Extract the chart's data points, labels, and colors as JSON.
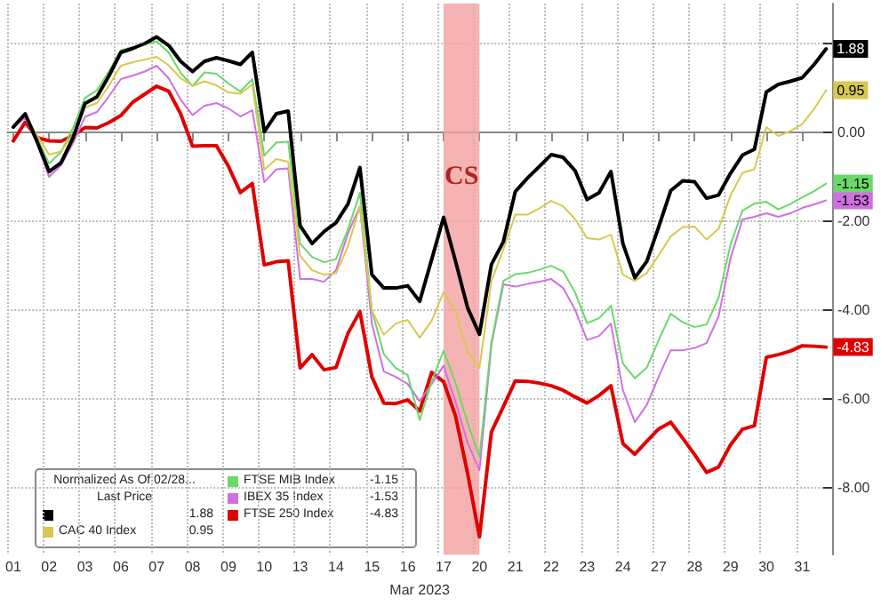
{
  "chart_data": {
    "type": "line",
    "legend_title": "Normalized As Of 02/28...\nLast Price",
    "xlabel": "Mar 2023",
    "categories": [
      "01",
      null,
      null,
      "02",
      null,
      null,
      "03",
      null,
      null,
      "06",
      null,
      null,
      "07",
      null,
      null,
      "08",
      null,
      null,
      "09",
      null,
      null,
      "10",
      null,
      null,
      "13",
      null,
      null,
      "14",
      null,
      null,
      "15",
      null,
      null,
      "16",
      null,
      null,
      "17",
      null,
      null,
      "20",
      null,
      null,
      "21",
      null,
      null,
      "22",
      null,
      null,
      "23",
      null,
      null,
      "24",
      null,
      null,
      "27",
      null,
      null,
      "28",
      null,
      null,
      "29",
      null,
      null,
      "30",
      null,
      null,
      "31",
      null,
      null
    ],
    "series": [
      {
        "color": "#000000",
        "values": [
          0.12,
          0.42,
          -0.21,
          -0.88,
          -0.68,
          -0.12,
          0.65,
          0.8,
          1.27,
          1.8,
          1.89,
          2.0,
          2.15,
          1.96,
          1.6,
          1.37,
          1.6,
          1.68,
          1.61,
          1.53,
          1.8,
          0.02,
          0.42,
          0.48,
          -2.1,
          -2.5,
          -2.23,
          -2.03,
          -1.61,
          -0.79,
          -3.2,
          -3.5,
          -3.5,
          -3.45,
          -3.8,
          -2.86,
          -1.91,
          -2.9,
          -3.94,
          -4.54,
          -2.97,
          -2.46,
          -1.33,
          -1.03,
          -0.77,
          -0.5,
          -0.56,
          -0.86,
          -1.51,
          -1.36,
          -0.88,
          -2.5,
          -3.27,
          -2.9,
          -2.12,
          -1.31,
          -1.09,
          -1.11,
          -1.48,
          -1.41,
          -0.92,
          -0.51,
          -0.38,
          0.91,
          1.08,
          1.15,
          1.23,
          1.53,
          1.88
        ],
        "value_labels": [
          null,
          null,
          null,
          null,
          null,
          null,
          null,
          null,
          null,
          null,
          null,
          null,
          null,
          null,
          null,
          null,
          null,
          null,
          null,
          null,
          null,
          null,
          null,
          null,
          null,
          null,
          null,
          null,
          null,
          null,
          null,
          null,
          null,
          null,
          null,
          null,
          null,
          null,
          null,
          null,
          null,
          null,
          null,
          null,
          null,
          null,
          null,
          null,
          null,
          null,
          null,
          null,
          null,
          null,
          null,
          null,
          null,
          null,
          null,
          null,
          null,
          null,
          null,
          null,
          null,
          null,
          null,
          null,
          "1.88"
        ]
      },
      {
        "name": "CAC 40 Index",
        "color": "#d8c850",
        "values": [
          0.12,
          0.4,
          -0.07,
          -0.5,
          -0.43,
          -0.04,
          0.56,
          0.66,
          1.05,
          1.5,
          1.58,
          1.64,
          1.7,
          1.51,
          1.22,
          1.05,
          1.15,
          1.06,
          0.9,
          0.87,
          1.08,
          -0.84,
          -0.6,
          -0.66,
          -2.77,
          -3.1,
          -3.2,
          -3.17,
          -2.56,
          -1.66,
          -4.0,
          -4.55,
          -4.3,
          -4.22,
          -4.62,
          -4.24,
          -3.59,
          -4.04,
          -4.92,
          -5.3,
          -3.35,
          -2.63,
          -1.85,
          -1.85,
          -1.71,
          -1.54,
          -1.66,
          -1.95,
          -2.38,
          -2.41,
          -2.3,
          -3.2,
          -3.34,
          -3.16,
          -2.76,
          -2.34,
          -2.13,
          -2.12,
          -2.41,
          -2.17,
          -1.42,
          -0.91,
          -0.83,
          0.12,
          -0.08,
          0.03,
          0.19,
          0.53,
          0.95
        ],
        "value_labels": [
          null,
          null,
          null,
          null,
          null,
          null,
          null,
          null,
          null,
          null,
          null,
          null,
          null,
          null,
          null,
          null,
          null,
          null,
          null,
          null,
          null,
          null,
          null,
          null,
          null,
          null,
          null,
          null,
          null,
          null,
          null,
          null,
          null,
          null,
          null,
          null,
          null,
          null,
          null,
          null,
          null,
          null,
          null,
          null,
          null,
          null,
          null,
          null,
          null,
          null,
          null,
          null,
          null,
          null,
          null,
          null,
          null,
          null,
          null,
          null,
          null,
          null,
          null,
          null,
          null,
          null,
          null,
          null,
          "0.95"
        ]
      },
      {
        "name": "FTSE MIB Index",
        "color": "#6ad86a",
        "values": [
          0.12,
          0.4,
          -0.13,
          -0.7,
          -0.44,
          0.1,
          0.78,
          0.95,
          1.37,
          1.85,
          1.92,
          1.99,
          2.05,
          1.8,
          1.34,
          1.04,
          1.35,
          1.32,
          1.1,
          0.92,
          1.2,
          -0.52,
          -0.23,
          -0.21,
          -2.5,
          -2.8,
          -2.92,
          -2.85,
          -2.18,
          -1.36,
          -4.0,
          -4.99,
          -5.3,
          -5.46,
          -6.47,
          -5.61,
          -4.91,
          -5.64,
          -6.53,
          -7.3,
          -4.72,
          -3.34,
          -3.19,
          -3.16,
          -3.09,
          -3.0,
          -3.13,
          -3.6,
          -4.29,
          -4.18,
          -3.9,
          -5.2,
          -5.53,
          -5.29,
          -4.67,
          -4.08,
          -4.27,
          -4.38,
          -4.32,
          -3.72,
          -2.53,
          -1.76,
          -1.6,
          -1.56,
          -1.73,
          -1.61,
          -1.46,
          -1.32,
          -1.15
        ],
        "value_labels": [
          null,
          null,
          null,
          null,
          null,
          null,
          null,
          null,
          null,
          null,
          null,
          null,
          null,
          null,
          null,
          null,
          null,
          null,
          null,
          null,
          null,
          null,
          null,
          null,
          null,
          null,
          null,
          null,
          null,
          null,
          null,
          null,
          null,
          null,
          null,
          null,
          null,
          null,
          null,
          null,
          null,
          null,
          null,
          null,
          null,
          null,
          null,
          null,
          null,
          null,
          null,
          null,
          null,
          null,
          null,
          null,
          null,
          null,
          null,
          null,
          null,
          null,
          null,
          null,
          null,
          null,
          null,
          null,
          "-1.15"
        ]
      },
      {
        "name": "IBEX 35 Index",
        "color": "#d070e0",
        "values": [
          0.12,
          0.33,
          -0.26,
          -1.0,
          -0.74,
          -0.24,
          0.35,
          0.46,
          0.81,
          1.2,
          1.28,
          1.37,
          1.5,
          1.22,
          0.74,
          0.39,
          0.6,
          0.66,
          0.54,
          0.36,
          0.5,
          -1.12,
          -0.83,
          -0.81,
          -3.3,
          -3.3,
          -3.36,
          -3.1,
          -2.27,
          -1.66,
          -4.3,
          -5.38,
          -5.5,
          -5.66,
          -6.05,
          -5.66,
          -5.25,
          -6.06,
          -6.98,
          -7.6,
          -4.78,
          -3.42,
          -3.47,
          -3.41,
          -3.36,
          -3.3,
          -3.5,
          -3.99,
          -4.67,
          -4.58,
          -4.3,
          -5.8,
          -6.52,
          -6.13,
          -5.49,
          -4.9,
          -4.9,
          -4.85,
          -4.74,
          -4.14,
          -2.83,
          -1.96,
          -1.9,
          -1.82,
          -1.9,
          -1.82,
          -1.7,
          -1.62,
          -1.53
        ],
        "value_labels": [
          null,
          null,
          null,
          null,
          null,
          null,
          null,
          null,
          null,
          null,
          null,
          null,
          null,
          null,
          null,
          null,
          null,
          null,
          null,
          null,
          null,
          null,
          null,
          null,
          null,
          null,
          null,
          null,
          null,
          null,
          null,
          null,
          null,
          null,
          null,
          null,
          null,
          null,
          null,
          null,
          null,
          null,
          null,
          null,
          null,
          null,
          null,
          null,
          null,
          null,
          null,
          null,
          null,
          null,
          null,
          null,
          null,
          null,
          null,
          null,
          null,
          null,
          null,
          null,
          null,
          null,
          null,
          null,
          "-1.53"
        ]
      },
      {
        "name": "FTSE 250 Index",
        "color": "#e00000",
        "values": [
          -0.19,
          0.23,
          -0.12,
          -0.19,
          -0.2,
          -0.07,
          0.11,
          0.1,
          0.22,
          0.38,
          0.68,
          0.86,
          1.04,
          0.93,
          0.42,
          -0.31,
          -0.3,
          -0.3,
          -0.76,
          -1.35,
          -1.15,
          -2.98,
          -2.91,
          -2.89,
          -5.3,
          -5.0,
          -5.34,
          -5.29,
          -4.52,
          -4.03,
          -5.5,
          -6.09,
          -6.1,
          -6.02,
          -6.27,
          -5.4,
          -5.61,
          -6.38,
          -7.66,
          -9.1,
          -6.74,
          -6.17,
          -5.59,
          -5.6,
          -5.64,
          -5.7,
          -5.8,
          -5.95,
          -6.09,
          -5.92,
          -5.7,
          -7.0,
          -7.24,
          -6.95,
          -6.67,
          -6.52,
          -6.88,
          -7.25,
          -7.65,
          -7.53,
          -7.03,
          -6.68,
          -6.6,
          -5.06,
          -5.0,
          -4.92,
          -4.8,
          -4.81,
          -4.83
        ],
        "value_labels": [
          null,
          null,
          null,
          null,
          null,
          null,
          null,
          null,
          null,
          null,
          null,
          null,
          null,
          null,
          null,
          null,
          null,
          null,
          null,
          null,
          null,
          null,
          null,
          null,
          null,
          null,
          null,
          null,
          null,
          null,
          null,
          null,
          null,
          null,
          null,
          null,
          null,
          null,
          null,
          null,
          null,
          null,
          null,
          null,
          null,
          null,
          null,
          null,
          null,
          null,
          null,
          null,
          null,
          null,
          null,
          null,
          null,
          null,
          null,
          null,
          null,
          null,
          null,
          null,
          null,
          null,
          null,
          null,
          "-4.83"
        ]
      }
    ],
    "ylim": [
      -9.5,
      2.9
    ],
    "yticks": [
      {
        "value": 2,
        "label": null
      },
      {
        "value": 0,
        "label": "0.00"
      },
      {
        "value": -2,
        "label": "-2.00"
      },
      {
        "value": -4,
        "label": "-4.00"
      },
      {
        "value": -6,
        "label": "-6.00"
      },
      {
        "value": -8,
        "label": "-8.00"
      }
    ],
    "bands": [
      {
        "axis": "x",
        "from": "17",
        "to": "20",
        "label": "CS",
        "color": "#f4a0a0"
      }
    ],
    "grid": true,
    "legend": "bottom left",
    "marker": "none",
    "line_style": "solid"
  }
}
